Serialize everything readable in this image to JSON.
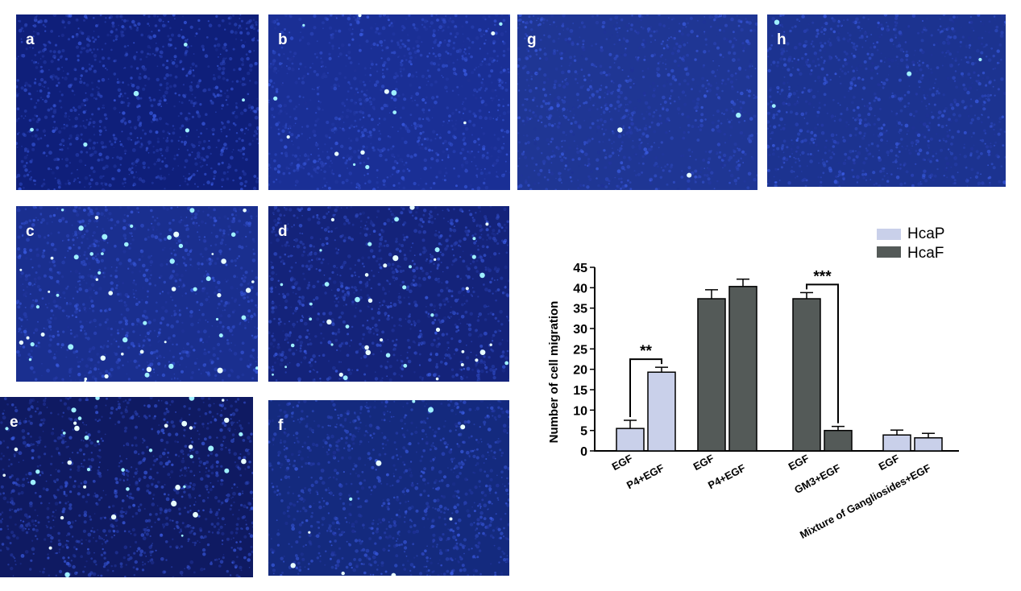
{
  "panels": [
    {
      "id": "a",
      "label": "a",
      "bg": "#0f1f7a",
      "dots": 6
    },
    {
      "id": "b",
      "label": "b",
      "bg": "#1a2f95",
      "dots": 14
    },
    {
      "id": "g",
      "label": "g",
      "bg": "#1f3694",
      "dots": 3
    },
    {
      "id": "h",
      "label": "h",
      "bg": "#1c3390",
      "dots": 4
    },
    {
      "id": "c",
      "label": "c",
      "bg": "#1a2f8f",
      "dots": 55
    },
    {
      "id": "d",
      "label": "d",
      "bg": "#14237a",
      "dots": 45
    },
    {
      "id": "e",
      "label": "e",
      "bg": "#0f1a62",
      "dots": 40
    },
    {
      "id": "f",
      "label": "f",
      "bg": "#142a7e",
      "dots": 10
    }
  ],
  "chart_data": {
    "type": "bar",
    "ylabel": "Number of cell migration",
    "ylim": [
      0,
      45
    ],
    "yticks": [
      0,
      5,
      10,
      15,
      20,
      25,
      30,
      35,
      40,
      45
    ],
    "legend": {
      "placement": "top-right",
      "entries": [
        {
          "name": "HcaP",
          "color": "#c9d0ea"
        },
        {
          "name": "HcaF",
          "color": "#545a58"
        }
      ]
    },
    "bars": [
      {
        "label": "EGF",
        "series": "HcaP",
        "value": 5.5,
        "error": 2.0
      },
      {
        "label": "P4+EGF",
        "series": "HcaP",
        "value": 19.3,
        "error": 1.2
      },
      {
        "label": "EGF",
        "series": "HcaF",
        "value": 37.3,
        "error": 2.2
      },
      {
        "label": "P4+EGF",
        "series": "HcaF",
        "value": 40.3,
        "error": 1.8
      },
      {
        "label": "EGF",
        "series": "HcaF",
        "value": 37.3,
        "error": 1.5
      },
      {
        "label": "GM3+EGF",
        "series": "HcaF",
        "value": 5.0,
        "error": 1.0
      },
      {
        "label": "EGF",
        "series": "HcaP",
        "value": 3.9,
        "error": 1.2
      },
      {
        "label": "Mixture of Gangliosides+EGF",
        "series": "HcaP",
        "value": 3.2,
        "error": 1.1
      }
    ],
    "annotations": [
      {
        "text": "**",
        "from_bar": 0,
        "to_bar": 1
      },
      {
        "text": "***",
        "from_bar": 4,
        "to_bar": 5
      }
    ]
  }
}
